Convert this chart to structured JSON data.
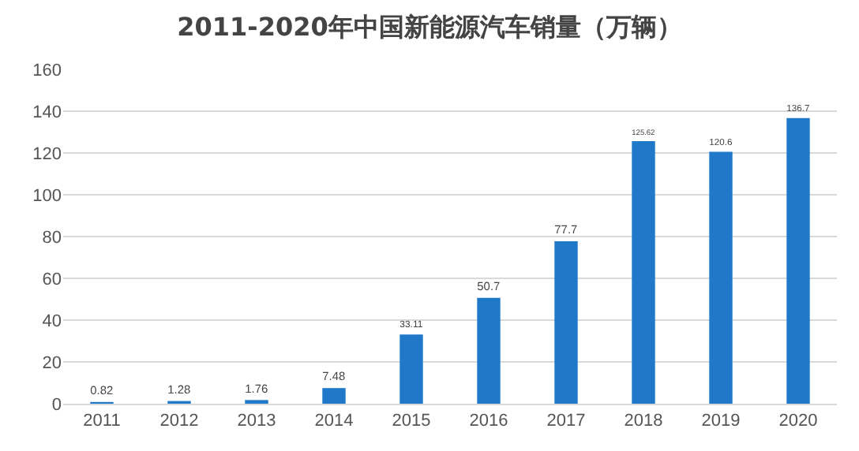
{
  "chart_data": {
    "type": "bar",
    "title": "2011-2020年中国新能源汽车销量（万辆）",
    "categories": [
      "2011",
      "2012",
      "2013",
      "2014",
      "2015",
      "2016",
      "2017",
      "2018",
      "2019",
      "2020"
    ],
    "values": [
      0.82,
      1.28,
      1.76,
      7.48,
      33.11,
      50.7,
      77.7,
      125.62,
      120.6,
      136.7
    ],
    "color": "#1f78c8",
    "data_labels": true,
    "ylim": [
      0,
      160
    ],
    "yticks": [
      0,
      20,
      40,
      60,
      80,
      100,
      120,
      140,
      160
    ],
    "grid": "y"
  }
}
